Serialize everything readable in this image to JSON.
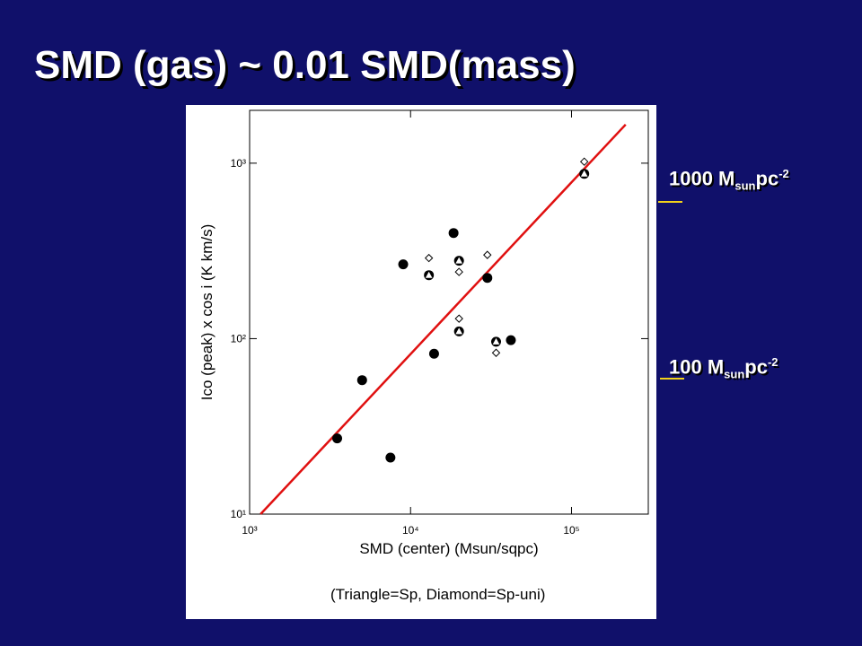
{
  "title": "SMD (gas) ~ 0.01 SMD(mass)",
  "chart_data": {
    "type": "scatter",
    "x_label": "SMD (center) (Msun/sqpc)",
    "y_label": "Ico (peak) x cos i (K km/s)",
    "note": "(Triangle=Sp, Diamond=Sp-uni)",
    "xscale": "log",
    "yscale": "log",
    "xlim": [
      1000,
      300000
    ],
    "ylim": [
      10,
      2000
    ],
    "xticks": [
      {
        "value": 1000,
        "label": "10³"
      },
      {
        "value": 10000,
        "label": "10⁴"
      },
      {
        "value": 100000,
        "label": "10⁵"
      }
    ],
    "yticks": [
      {
        "value": 10,
        "label": "10¹"
      },
      {
        "value": 100,
        "label": "10²"
      },
      {
        "value": 1000,
        "label": "10³"
      }
    ],
    "series": [
      {
        "marker": "circle",
        "color": "#000000",
        "x": [
          3500,
          5000,
          7500,
          9000,
          13000,
          18500,
          20000,
          30000,
          14000,
          20000,
          34000,
          42000,
          120000
        ],
        "y": [
          27,
          58,
          21,
          265,
          230,
          400,
          278,
          222,
          82,
          110,
          96,
          98,
          870
        ]
      },
      {
        "marker": "triangle",
        "color": "#ffffff",
        "x": [
          13000,
          20000,
          20000,
          34000,
          120000
        ],
        "y": [
          230,
          278,
          110,
          96,
          870
        ]
      },
      {
        "marker": "diamond",
        "color": "#000000",
        "x": [
          13000,
          20000,
          30000,
          20000,
          34000,
          120000
        ],
        "y": [
          288,
          240,
          300,
          130,
          83,
          1020
        ]
      }
    ],
    "fit": {
      "color": "#e01010",
      "x": [
        1170,
        217000
      ],
      "y": [
        10,
        1660
      ]
    }
  },
  "annotations": [
    {
      "text": "1000 M",
      "sub": "sun",
      "after": "pc",
      "sup": "-2"
    },
    {
      "text": "100 M",
      "sub": "sun",
      "after": "pc",
      "sup": "-2"
    }
  ]
}
